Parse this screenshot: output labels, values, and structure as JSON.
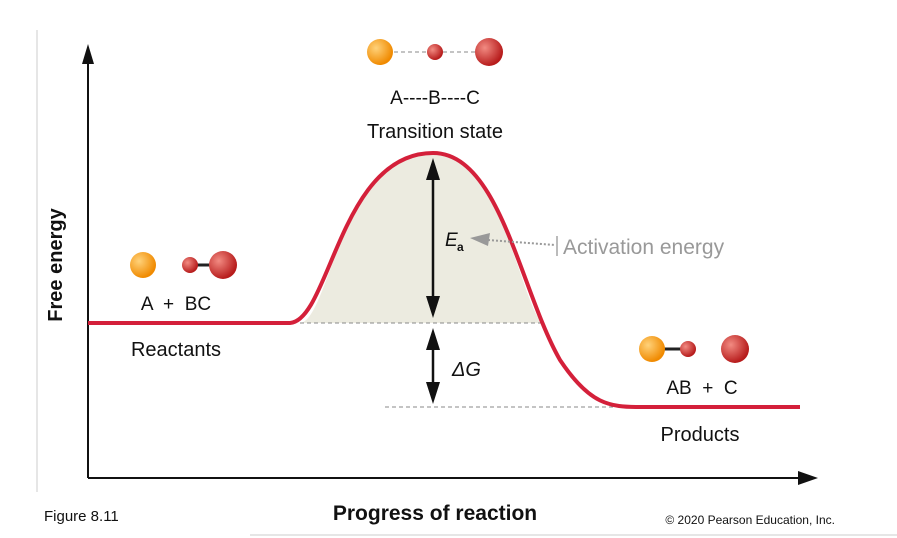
{
  "yaxis_label": "Free energy",
  "xaxis_label": "Progress of reaction",
  "figure_label": "Figure 8.11",
  "copyright": "© 2020 Pearson Education, Inc.",
  "transition": {
    "formula": "A----B----C",
    "label": "Transition state"
  },
  "reactants": {
    "formula": "A  +  BC",
    "label": "Reactants"
  },
  "products": {
    "formula": "AB  +  C",
    "label": "Products"
  },
  "activation": {
    "symbol": "E",
    "subscript": "a",
    "label": "Activation energy"
  },
  "delta_g": "ΔG",
  "colors": {
    "curve": "#d4203a",
    "fill": "#ecebe0",
    "atom_a": "#f7941d",
    "atom_bc": "#d32f2f",
    "annotation": "#999999"
  }
}
